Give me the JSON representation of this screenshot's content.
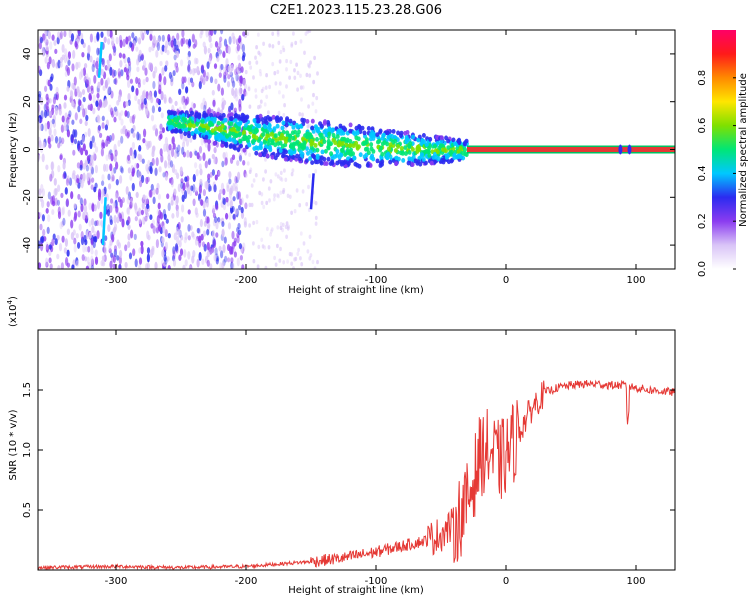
{
  "title": "C2E1.2023.115.23.28.G06",
  "chart_data": [
    {
      "type": "heatmap",
      "name": "spectrogram",
      "xlabel": "Height of straight line (km)",
      "ylabel": "Frequency (Hz)",
      "xlim": [
        -360,
        130
      ],
      "ylim": [
        -50,
        50
      ],
      "xticks": [
        -300,
        -200,
        -100,
        0,
        100
      ],
      "yticks": [
        -40,
        -20,
        0,
        20,
        40
      ],
      "colorbar": {
        "label": "Normalized spectral amplitude",
        "range": [
          0,
          1
        ],
        "ticks": [
          "0.0",
          "0.2",
          "0.4",
          "0.6",
          "0.8"
        ],
        "colormap": [
          "#ffffff",
          "#d9c4f7",
          "#8b3cf0",
          "#2b2bf0",
          "#00c8ff",
          "#00e676",
          "#7fe000",
          "#ffe600",
          "#ff8a00",
          "#ff1a1a",
          "#ff0066"
        ]
      },
      "features": {
        "carrier_band": {
          "x": [
            -30,
            130
          ],
          "frequency": 0,
          "color": "#e53935"
        },
        "scintillation_region": {
          "x": [
            -360,
            -200
          ],
          "frequency_range": [
            -50,
            50
          ]
        },
        "main_band": {
          "x": [
            -260,
            -30
          ],
          "frequency_start": 12,
          "frequency_end": 0
        }
      }
    },
    {
      "type": "line",
      "name": "snr",
      "xlabel": "Height of straight line (km)",
      "ylabel": "SNR (10 * v/v)",
      "multiplier": "(x10",
      "multiplier_exp": "4",
      "multiplier_close": ")",
      "xlim": [
        -360,
        130
      ],
      "ylim": [
        0,
        2.0
      ],
      "xticks": [
        -300,
        -200,
        -100,
        0,
        100
      ],
      "yticks": [
        0.5,
        1.0,
        1.5
      ],
      "ytick_labels": [
        "0.5",
        "1.0",
        "1.5"
      ],
      "color": "#e53935",
      "series": [
        {
          "x": [
            -360,
            -300,
            -250,
            -200,
            -175,
            -150,
            -125,
            -100,
            -80,
            -60,
            -50,
            -40,
            -35,
            -30,
            -25,
            -20,
            -15,
            -10,
            -5,
            0,
            5,
            10,
            15,
            20,
            25,
            30,
            40,
            50,
            60,
            70,
            80,
            90,
            95,
            100,
            110,
            120,
            130
          ],
          "values": [
            0.02,
            0.03,
            0.02,
            0.03,
            0.05,
            0.07,
            0.1,
            0.15,
            0.2,
            0.25,
            0.3,
            0.38,
            0.45,
            0.55,
            0.75,
            0.95,
            1.0,
            0.95,
            0.9,
            0.95,
            1.05,
            1.15,
            1.25,
            1.35,
            1.42,
            1.48,
            1.52,
            1.54,
            1.55,
            1.55,
            1.54,
            1.54,
            1.53,
            1.52,
            1.5,
            1.49,
            1.48
          ]
        }
      ]
    }
  ]
}
